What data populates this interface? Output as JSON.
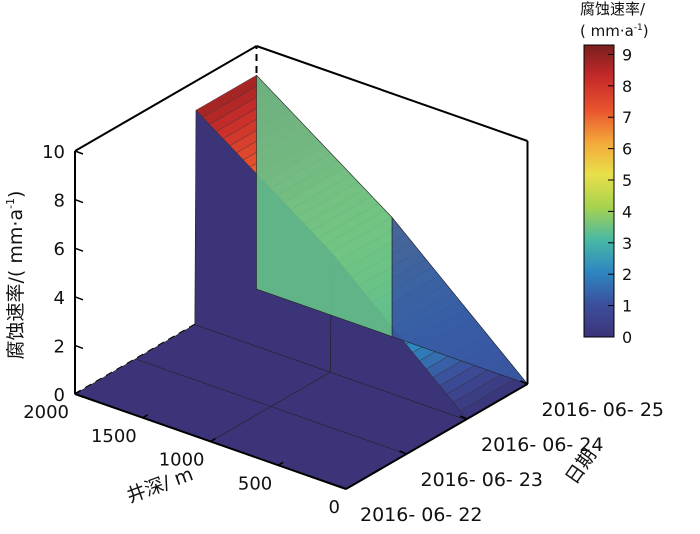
{
  "chart_data": {
    "type": "surface3d",
    "ylabel": "腐蚀速率/( mm·a",
    "ylabel_sup": "-1",
    "ylabel_close": ")",
    "xlabel": "井深/ m",
    "datelabel": "日期",
    "z_ticks": [
      "0",
      "2",
      "4",
      "6",
      "8",
      "10"
    ],
    "depth_ticks": [
      "0",
      "500",
      "1000",
      "1500",
      "2000"
    ],
    "date_ticks": [
      "2016- 06- 22",
      "2016- 06- 23",
      "2016- 06- 24",
      "2016- 06- 25"
    ],
    "zlim": [
      0,
      10
    ],
    "depth_range": [
      0,
      2000
    ],
    "dates": [
      "2016-06-22",
      "2016-06-23",
      "2016-06-24",
      "2016-06-25"
    ],
    "depth": [
      0,
      1000,
      2000
    ],
    "rate_by_date": [
      {
        "date": "2016-06-22",
        "values": [
          0,
          0,
          0
        ]
      },
      {
        "date": "2016-06-23",
        "values": [
          0,
          0,
          0
        ]
      },
      {
        "date": "2016-06-24",
        "values": [
          0,
          4.9,
          8.8
        ]
      },
      {
        "date": "2016-06-25",
        "values": [
          0,
          4.9,
          8.8
        ]
      }
    ],
    "colorbar": {
      "title_line1": "腐蚀速率/",
      "title_line2": "( mm·a",
      "title_sup": "-1",
      "title_close": ")",
      "ticks": [
        "0",
        "1",
        "2",
        "3",
        "4",
        "5",
        "6",
        "7",
        "8",
        "9"
      ],
      "range": [
        0,
        9.3
      ],
      "colormap": [
        "#3b3479",
        "#3c4f9c",
        "#2e86c1",
        "#48b9a5",
        "#a6d24f",
        "#e8e04a",
        "#f4a83a",
        "#e8532e",
        "#c62a2a",
        "#7a1f1f"
      ]
    }
  }
}
